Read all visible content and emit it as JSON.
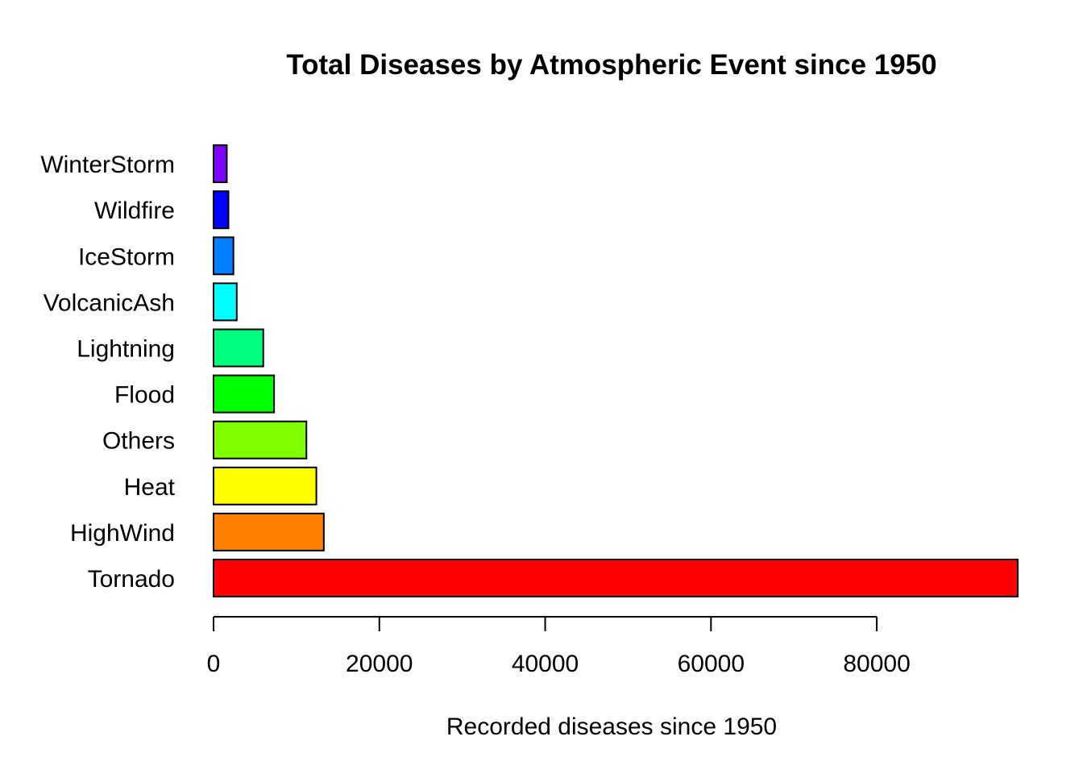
{
  "chart_data": {
    "type": "bar",
    "orientation": "horizontal",
    "title": "Total Diseases by Atmospheric Event since 1950",
    "xlabel": "Recorded diseases since 1950",
    "ylabel": "",
    "categories": [
      "Tornado",
      "HighWind",
      "Heat",
      "Others",
      "Flood",
      "Lightning",
      "VolcanicAsh",
      "IceStorm",
      "Wildfire",
      "WinterStorm"
    ],
    "values": [
      97000,
      13300,
      12400,
      11200,
      7300,
      6000,
      2800,
      2400,
      1800,
      1600
    ],
    "colors": [
      "#FF0000",
      "#FF8000",
      "#FFFF00",
      "#80FF00",
      "#00FF00",
      "#00FF80",
      "#00FFFF",
      "#0080FF",
      "#0000FF",
      "#8000FF"
    ],
    "bar_outline": "#000000",
    "xlim": [
      0,
      97000
    ],
    "xticks": [
      0,
      20000,
      40000,
      60000,
      80000
    ],
    "xtick_labels": [
      "0",
      "20000",
      "40000",
      "60000",
      "80000"
    ],
    "grid": false,
    "legend": "none"
  }
}
